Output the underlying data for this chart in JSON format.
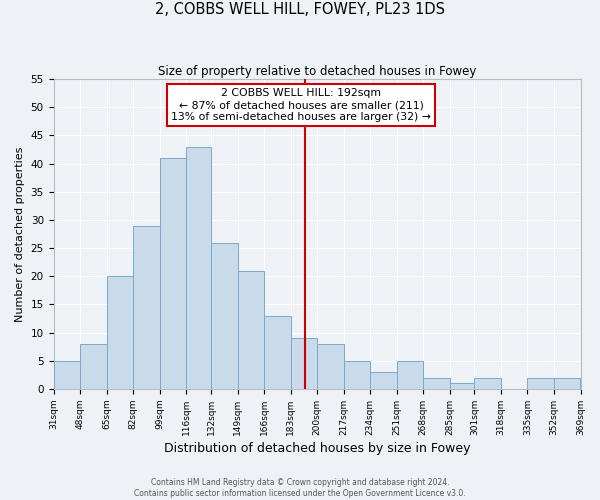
{
  "title": "2, COBBS WELL HILL, FOWEY, PL23 1DS",
  "subtitle": "Size of property relative to detached houses in Fowey",
  "xlabel": "Distribution of detached houses by size in Fowey",
  "ylabel": "Number of detached properties",
  "bar_color": "#c9daea",
  "bar_edge_color": "#7aaac8",
  "background_color": "#eef2f7",
  "grid_color": "#ffffff",
  "vline_x": 192,
  "vline_color": "#cc0000",
  "bin_edges": [
    31,
    48,
    65,
    82,
    99,
    116,
    132,
    149,
    166,
    183,
    200,
    217,
    234,
    251,
    268,
    285,
    301,
    318,
    335,
    352,
    369
  ],
  "bin_counts": [
    5,
    8,
    20,
    29,
    41,
    43,
    26,
    21,
    13,
    9,
    8,
    5,
    3,
    5,
    2,
    1,
    2,
    0,
    2,
    2
  ],
  "ylim": [
    0,
    55
  ],
  "yticks": [
    0,
    5,
    10,
    15,
    20,
    25,
    30,
    35,
    40,
    45,
    50,
    55
  ],
  "annotation_line1": "2 COBBS WELL HILL: 192sqm",
  "annotation_line2": "← 87% of detached houses are smaller (211)",
  "annotation_line3": "13% of semi-detached houses are larger (32) →",
  "annotation_box_color": "#ffffff",
  "annotation_border_color": "#cc0000",
  "footer_line1": "Contains HM Land Registry data © Crown copyright and database right 2024.",
  "footer_line2": "Contains public sector information licensed under the Open Government Licence v3.0.",
  "tick_labels": [
    "31sqm",
    "48sqm",
    "65sqm",
    "82sqm",
    "99sqm",
    "116sqm",
    "132sqm",
    "149sqm",
    "166sqm",
    "183sqm",
    "200sqm",
    "217sqm",
    "234sqm",
    "251sqm",
    "268sqm",
    "285sqm",
    "301sqm",
    "318sqm",
    "335sqm",
    "352sqm",
    "369sqm"
  ]
}
